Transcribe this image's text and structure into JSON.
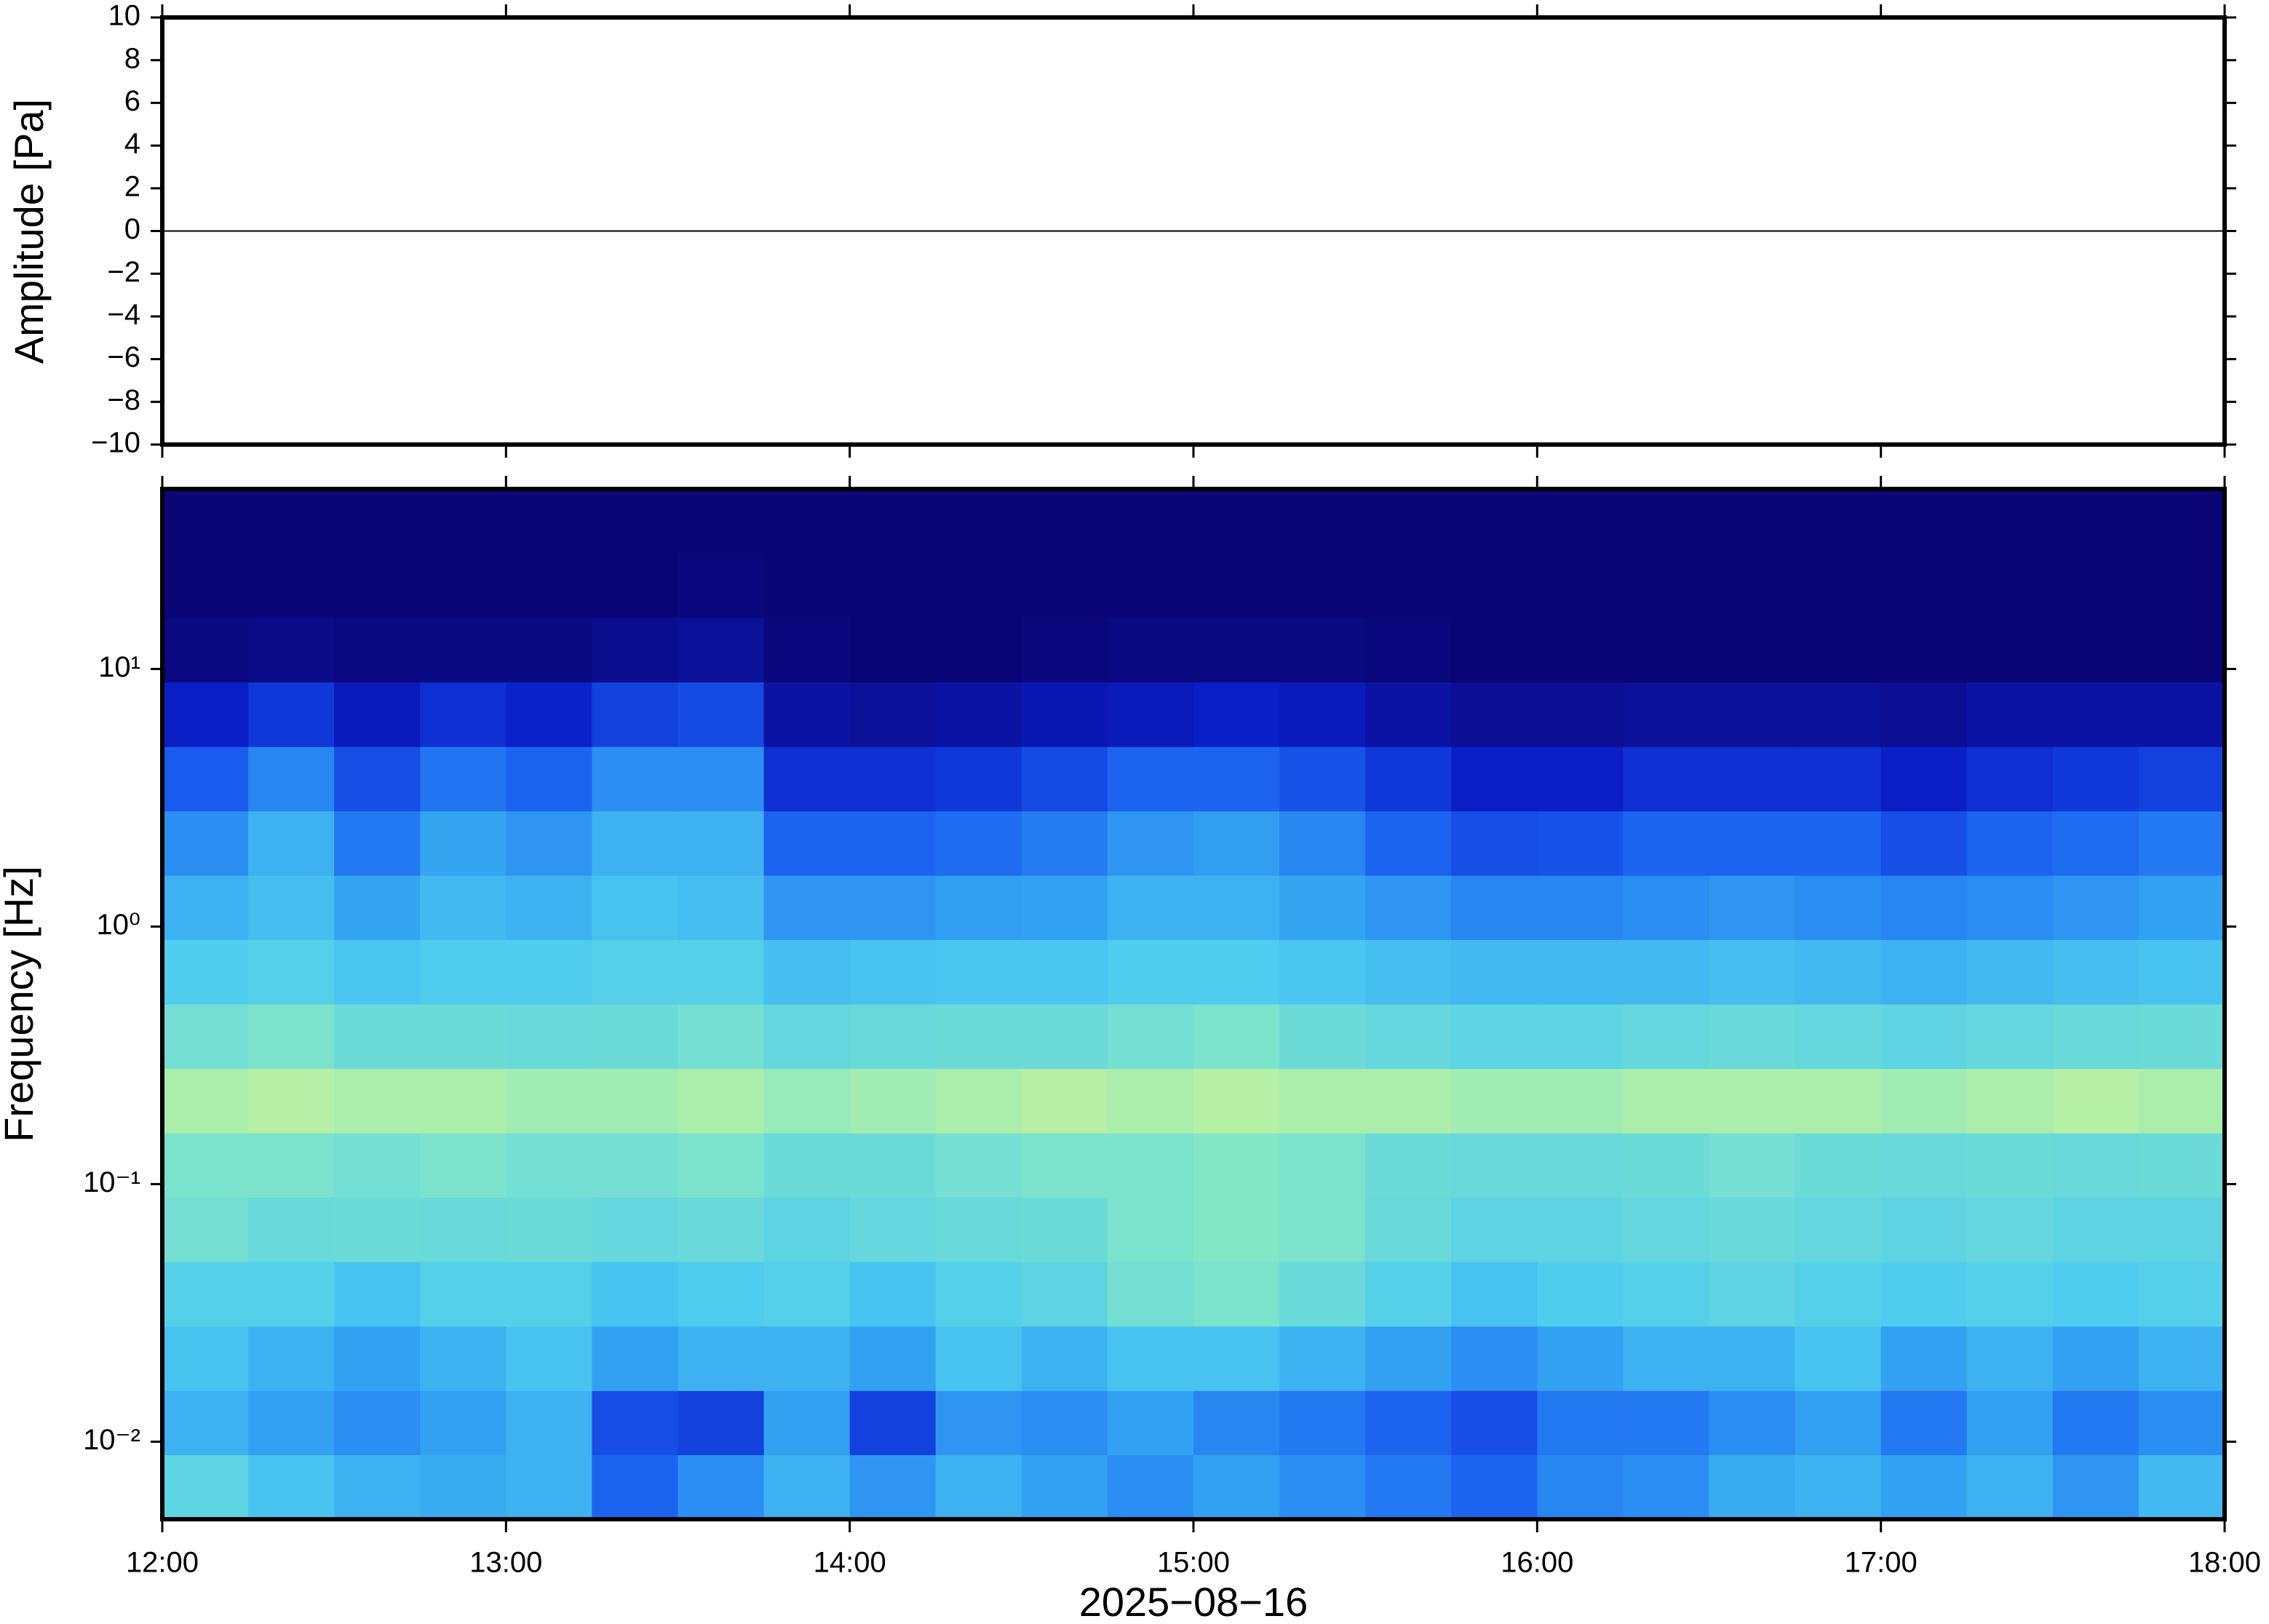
{
  "chart_data": [
    {
      "type": "line",
      "ylabel": "Amplitude [Pa]",
      "color": "#000000",
      "x": [
        12,
        12.5,
        13,
        13.5,
        14,
        14.5,
        15,
        15.5,
        16,
        16.5,
        17,
        17.5,
        18
      ],
      "values": [
        0,
        0,
        0,
        0,
        0,
        0,
        0,
        0,
        0,
        0,
        0,
        0,
        0
      ],
      "xlim": [
        12,
        18
      ],
      "ylim": [
        -10,
        10
      ],
      "yticks": [
        {
          "value": -10,
          "label": "−10"
        },
        {
          "value": -8,
          "label": "−8"
        },
        {
          "value": -6,
          "label": "−6"
        },
        {
          "value": -4,
          "label": "−4"
        },
        {
          "value": -2,
          "label": "−2"
        },
        0,
        2,
        4,
        6,
        8,
        10
      ]
    },
    {
      "type": "heatmap",
      "ylabel": "Frequency [Hz]",
      "xlabel": "2025−08−16",
      "log_y": true,
      "colormap": [
        "#0b0677",
        "#0a1ec8",
        "#1a5ef0",
        "#2f9af2",
        "#4ccaf0",
        "#80e6c8",
        "#c8f49a",
        "#f0f08a"
      ],
      "xlim": [
        12,
        18
      ],
      "ylim": [
        0.005,
        50
      ],
      "xticks": [
        {
          "value": 12,
          "label": "12:00"
        },
        {
          "value": 13,
          "label": "13:00"
        },
        {
          "value": 14,
          "label": "14:00"
        },
        {
          "value": 15,
          "label": "15:00"
        },
        {
          "value": 16,
          "label": "16:00"
        },
        {
          "value": 17,
          "label": "17:00"
        },
        {
          "value": 18,
          "label": "18:00"
        }
      ],
      "yticks": [
        {
          "value": 0.01,
          "label": "10⁻²"
        },
        {
          "value": 0.1,
          "label": "10⁻¹"
        },
        {
          "value": 1,
          "label": "10⁰"
        },
        {
          "value": 10,
          "label": "10¹"
        }
      ],
      "x_bins": [
        12,
        12.25,
        12.5,
        12.75,
        13,
        13.25,
        13.5,
        13.75,
        14,
        14.25,
        14.5,
        14.75,
        15,
        15.25,
        15.5,
        15.75,
        16,
        16.25,
        16.5,
        16.75,
        17,
        17.25,
        17.5,
        17.75,
        18
      ],
      "y_bins": [
        0.005,
        0.0089,
        0.0158,
        0.0281,
        0.05,
        0.089,
        0.158,
        0.281,
        0.5,
        0.89,
        1.58,
        2.81,
        5,
        8.9,
        15.8,
        28.1,
        50
      ],
      "z": [
        [
          0.62,
          0.55,
          0.5,
          0.48,
          0.5,
          0.3,
          0.4,
          0.5,
          0.42,
          0.5,
          0.45,
          0.4,
          0.45,
          0.4,
          0.35,
          0.3,
          0.38,
          0.4,
          0.48,
          0.5,
          0.45,
          0.5,
          0.42,
          0.52
        ],
        [
          0.5,
          0.45,
          0.4,
          0.45,
          0.5,
          0.25,
          0.22,
          0.45,
          0.22,
          0.42,
          0.4,
          0.45,
          0.38,
          0.35,
          0.3,
          0.25,
          0.35,
          0.35,
          0.4,
          0.45,
          0.35,
          0.45,
          0.35,
          0.4
        ],
        [
          0.55,
          0.5,
          0.45,
          0.5,
          0.55,
          0.45,
          0.5,
          0.5,
          0.45,
          0.55,
          0.5,
          0.55,
          0.55,
          0.5,
          0.45,
          0.4,
          0.45,
          0.5,
          0.5,
          0.55,
          0.45,
          0.5,
          0.45,
          0.5
        ],
        [
          0.6,
          0.6,
          0.55,
          0.6,
          0.6,
          0.55,
          0.58,
          0.6,
          0.55,
          0.6,
          0.62,
          0.68,
          0.7,
          0.65,
          0.6,
          0.55,
          0.58,
          0.6,
          0.62,
          0.6,
          0.58,
          0.6,
          0.58,
          0.6
        ],
        [
          0.68,
          0.65,
          0.66,
          0.65,
          0.66,
          0.64,
          0.65,
          0.62,
          0.64,
          0.65,
          0.66,
          0.7,
          0.72,
          0.7,
          0.65,
          0.62,
          0.62,
          0.64,
          0.65,
          0.64,
          0.62,
          0.64,
          0.62,
          0.62
        ],
        [
          0.7,
          0.7,
          0.68,
          0.7,
          0.68,
          0.68,
          0.7,
          0.66,
          0.66,
          0.68,
          0.7,
          0.7,
          0.72,
          0.7,
          0.66,
          0.65,
          0.65,
          0.66,
          0.68,
          0.66,
          0.65,
          0.66,
          0.65,
          0.66
        ],
        [
          0.8,
          0.82,
          0.8,
          0.8,
          0.78,
          0.78,
          0.8,
          0.76,
          0.78,
          0.8,
          0.82,
          0.8,
          0.82,
          0.8,
          0.8,
          0.78,
          0.78,
          0.8,
          0.8,
          0.8,
          0.78,
          0.8,
          0.82,
          0.8
        ],
        [
          0.68,
          0.7,
          0.66,
          0.66,
          0.65,
          0.66,
          0.68,
          0.64,
          0.65,
          0.66,
          0.66,
          0.68,
          0.7,
          0.66,
          0.64,
          0.62,
          0.62,
          0.64,
          0.65,
          0.64,
          0.62,
          0.64,
          0.65,
          0.66
        ],
        [
          0.58,
          0.6,
          0.56,
          0.58,
          0.58,
          0.6,
          0.6,
          0.54,
          0.55,
          0.56,
          0.56,
          0.58,
          0.58,
          0.56,
          0.54,
          0.52,
          0.52,
          0.52,
          0.54,
          0.52,
          0.5,
          0.52,
          0.54,
          0.55
        ],
        [
          0.5,
          0.54,
          0.46,
          0.52,
          0.5,
          0.55,
          0.54,
          0.42,
          0.42,
          0.44,
          0.45,
          0.5,
          0.5,
          0.46,
          0.42,
          0.38,
          0.38,
          0.4,
          0.42,
          0.4,
          0.38,
          0.4,
          0.42,
          0.45
        ],
        [
          0.4,
          0.5,
          0.35,
          0.46,
          0.42,
          0.5,
          0.5,
          0.3,
          0.3,
          0.32,
          0.36,
          0.42,
          0.44,
          0.38,
          0.3,
          0.25,
          0.26,
          0.3,
          0.3,
          0.3,
          0.25,
          0.3,
          0.32,
          0.35
        ],
        [
          0.28,
          0.38,
          0.25,
          0.34,
          0.3,
          0.4,
          0.4,
          0.18,
          0.18,
          0.2,
          0.24,
          0.3,
          0.3,
          0.26,
          0.2,
          0.14,
          0.14,
          0.18,
          0.18,
          0.18,
          0.14,
          0.18,
          0.2,
          0.22
        ],
        [
          0.14,
          0.2,
          0.12,
          0.18,
          0.15,
          0.22,
          0.24,
          0.08,
          0.06,
          0.08,
          0.1,
          0.12,
          0.14,
          0.12,
          0.08,
          0.05,
          0.05,
          0.06,
          0.06,
          0.06,
          0.05,
          0.08,
          0.08,
          0.08
        ],
        [
          0.02,
          0.03,
          0.02,
          0.02,
          0.02,
          0.04,
          0.06,
          0.01,
          0,
          0,
          0.01,
          0.02,
          0.02,
          0.02,
          0.01,
          0,
          0,
          0,
          0,
          0,
          0,
          0,
          0,
          0
        ],
        [
          0,
          0,
          0,
          0,
          0,
          0,
          0.01,
          0,
          0,
          0,
          0,
          0,
          0,
          0,
          0,
          0,
          0,
          0,
          0,
          0,
          0,
          0,
          0,
          0
        ],
        [
          0,
          0,
          0,
          0,
          0,
          0,
          0,
          0,
          0,
          0,
          0,
          0,
          0,
          0,
          0,
          0,
          0,
          0,
          0,
          0,
          0,
          0,
          0,
          0
        ]
      ]
    }
  ]
}
